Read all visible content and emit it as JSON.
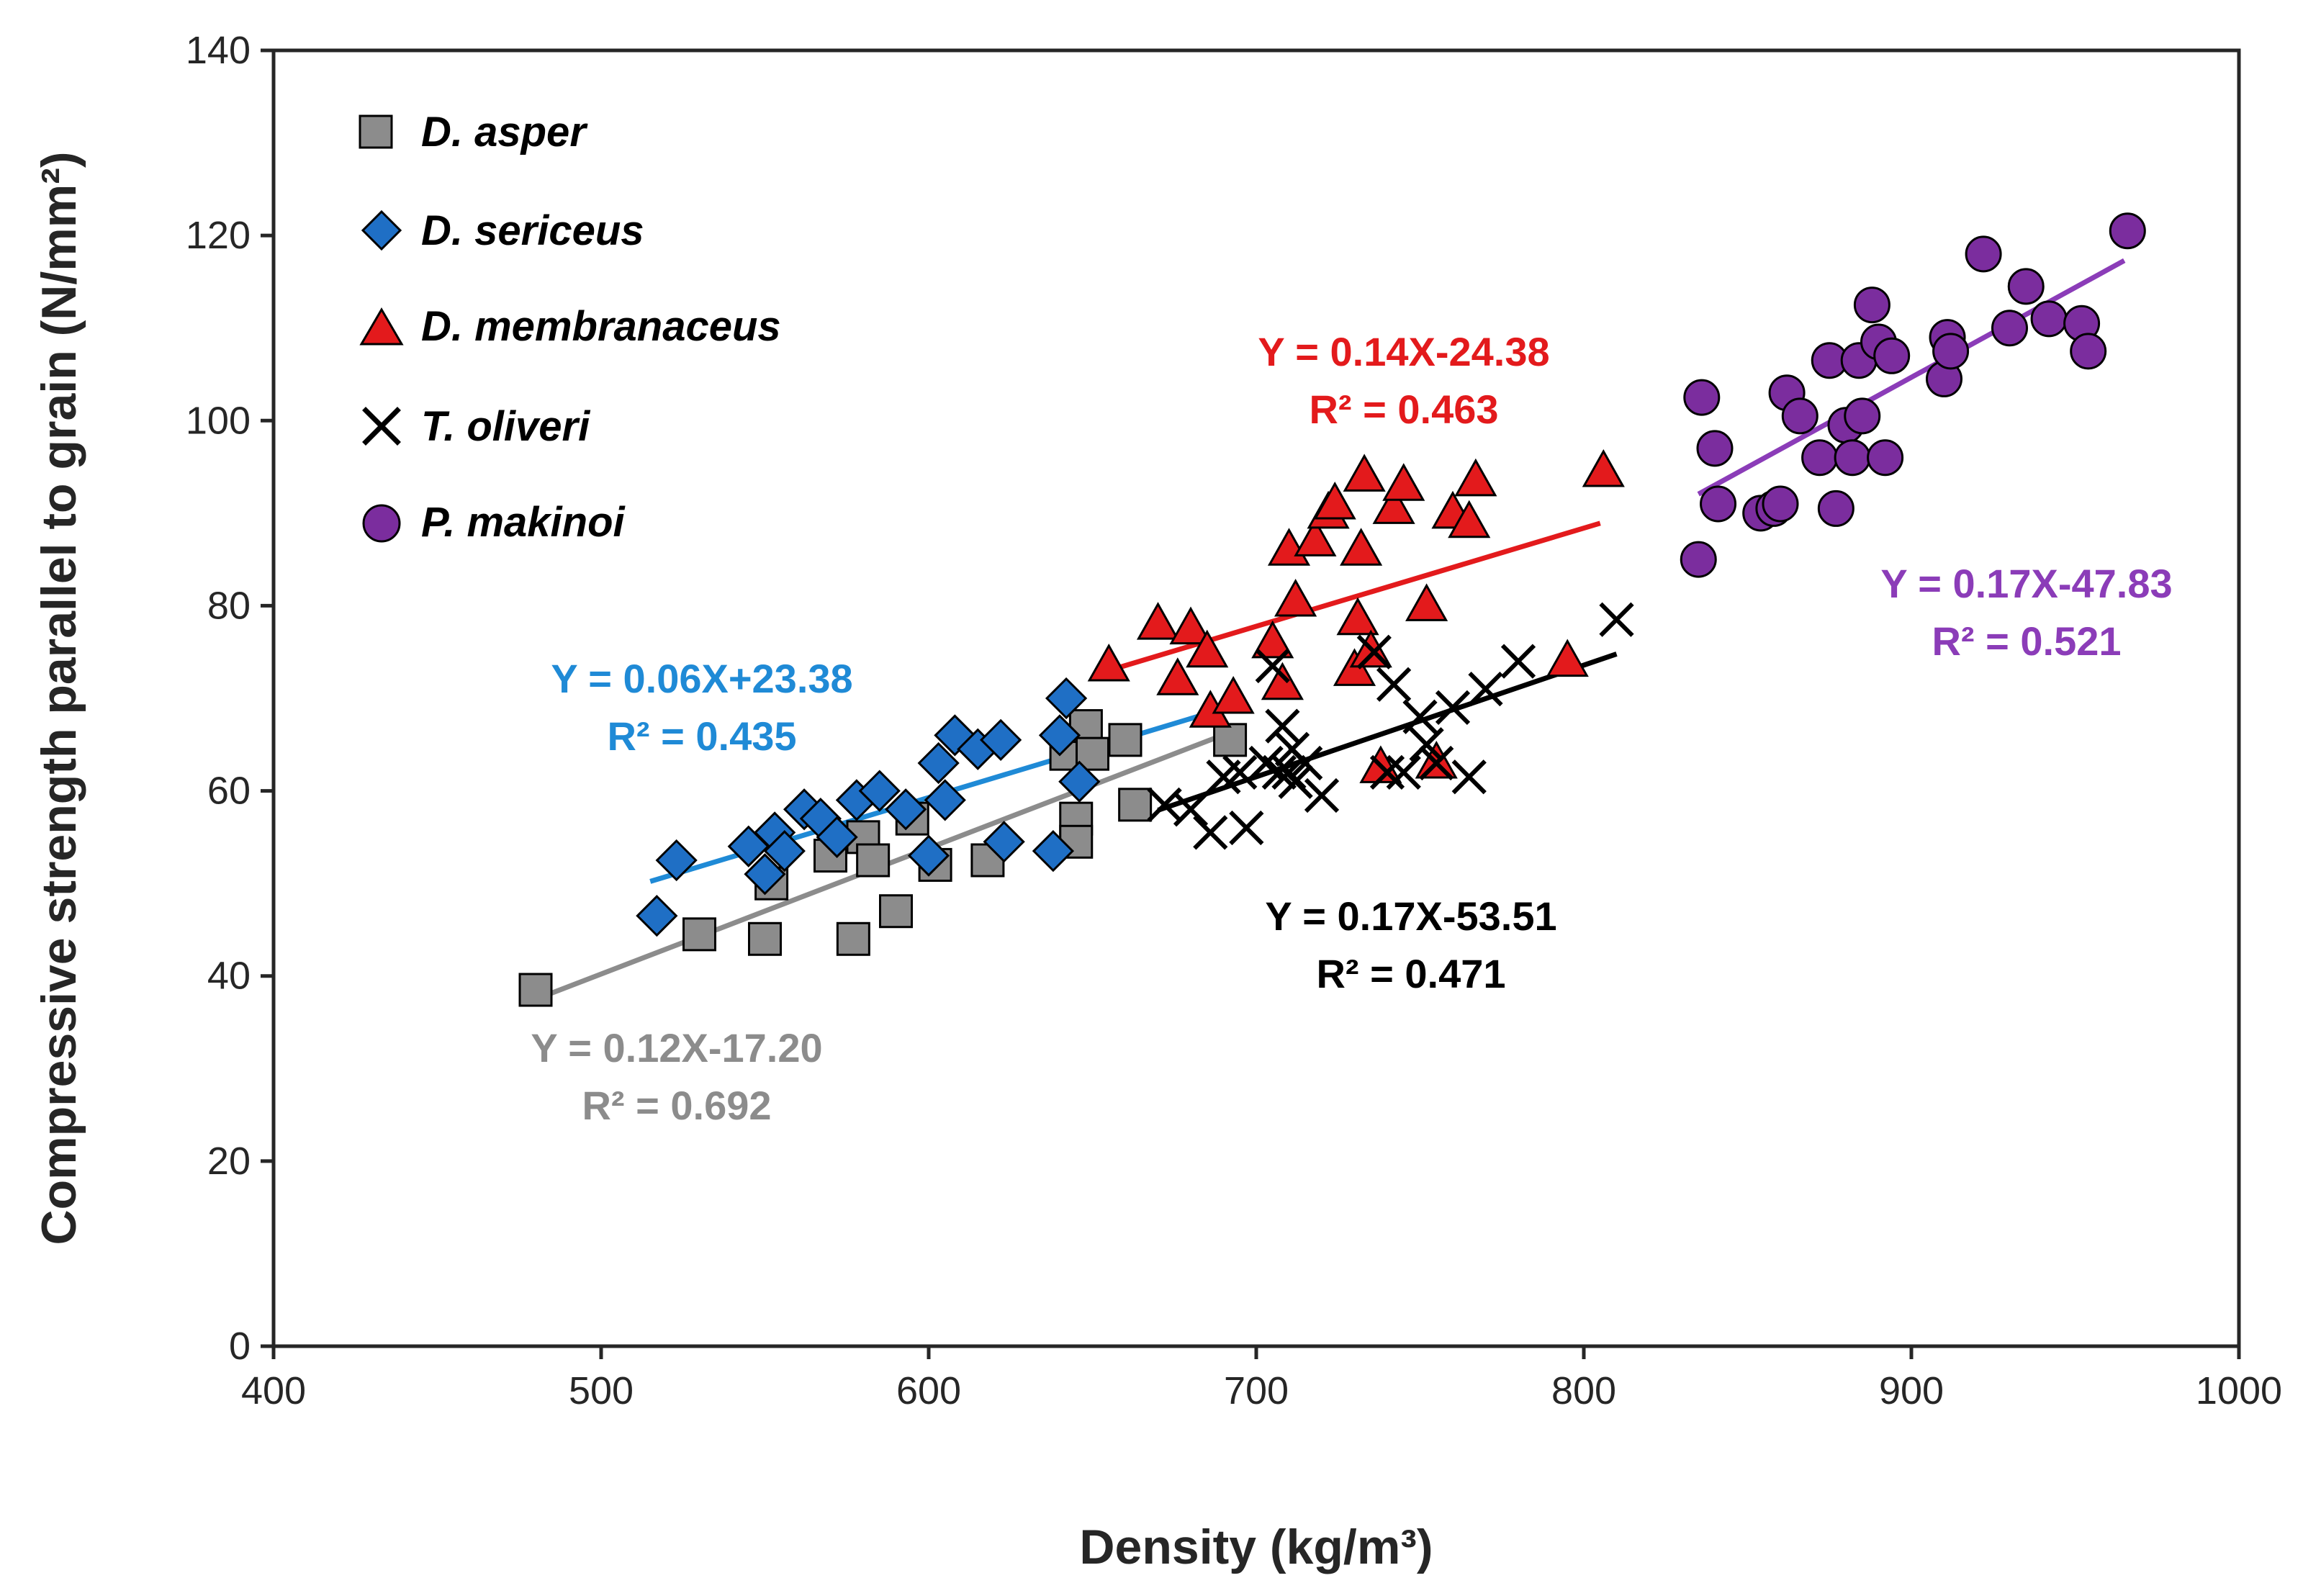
{
  "chart_data": {
    "type": "scatter",
    "title": "",
    "xlabel": "Density (kg/m³)",
    "ylabel": "Compressive strength parallel to grain (N/mm²)",
    "xlim": [
      400,
      1000
    ],
    "ylim": [
      0,
      140
    ],
    "xticks": [
      "400",
      "500",
      "600",
      "700",
      "800",
      "900",
      "1000"
    ],
    "yticks": [
      "0",
      "20",
      "40",
      "60",
      "80",
      "100",
      "120",
      "140"
    ],
    "grid": false,
    "legend_position": "top-left",
    "series": [
      {
        "name": "D. asper",
        "marker": "square",
        "color": "#8c8c8c",
        "line_color": "#8c8c8c",
        "x": [
          480,
          530,
          550,
          552,
          570,
          577,
          580,
          583,
          590,
          595,
          602,
          618,
          642,
          645,
          645,
          648,
          650,
          660,
          663,
          692
        ],
        "y": [
          38.5,
          44.5,
          44,
          50,
          53,
          44,
          55,
          52.5,
          47,
          57,
          52,
          52.5,
          64,
          57,
          54.5,
          67,
          64,
          65.5,
          58.5,
          65.5
        ],
        "trend": {
          "x0": 480,
          "x1": 690
        },
        "equation": "Y = 0.12X-17.20",
        "r2": "R² = 0.692"
      },
      {
        "name": "D. sericeus",
        "marker": "diamond",
        "color": "#1f6fc5",
        "line_color": "#1f8ad6",
        "x": [
          517,
          523,
          545,
          550,
          553,
          556,
          562,
          567,
          572,
          578,
          585,
          593,
          600,
          603,
          605,
          608,
          615,
          622,
          623,
          638,
          640,
          642,
          646
        ],
        "y": [
          46.5,
          52.5,
          54,
          51,
          55.5,
          53.5,
          58,
          57,
          55,
          59,
          60,
          58,
          53,
          63,
          59,
          66,
          64.5,
          65.5,
          54.5,
          53.5,
          66,
          70,
          61
        ],
        "trend": {
          "x0": 515,
          "x1": 685
        },
        "equation": "Y = 0.06X+23.38",
        "r2": "R² = 0.435"
      },
      {
        "name": "D. membranaceus",
        "marker": "triangle",
        "color": "#e31a1c",
        "line_color": "#e31a1c",
        "x": [
          655,
          670,
          676,
          680,
          685,
          686,
          693,
          705,
          708,
          710,
          712,
          718,
          722,
          724,
          730,
          731,
          732,
          733,
          735,
          738,
          742,
          745,
          752,
          755,
          760,
          765,
          767,
          795,
          806
        ],
        "y": [
          73.5,
          78,
          72,
          77.5,
          75,
          68.5,
          70,
          76,
          71.5,
          86,
          80.5,
          87,
          90,
          91,
          73,
          78.5,
          86,
          94,
          75,
          62.5,
          90.5,
          93,
          80,
          63,
          90,
          89,
          93.5,
          74,
          94.5
        ],
        "trend": {
          "x0": 655,
          "x1": 805
        },
        "equation": "Y = 0.14X-24.38",
        "r2": "R² = 0.463"
      },
      {
        "name": "T. oliveri",
        "marker": "x",
        "color": "#000000",
        "line_color": "#000000",
        "x": [
          672,
          680,
          686,
          690,
          695,
          697,
          703,
          705,
          707,
          708,
          710,
          711,
          712,
          715,
          720,
          736,
          740,
          742,
          745,
          750,
          752,
          755,
          760,
          765,
          770,
          780,
          810
        ],
        "y": [
          58.5,
          58,
          55.5,
          61.5,
          62,
          56,
          63,
          73.5,
          62,
          67,
          62,
          64.5,
          61,
          63,
          59.5,
          75,
          62,
          71.5,
          62,
          68,
          65,
          63,
          69,
          61.5,
          71,
          74,
          78.5
        ],
        "trend": {
          "x0": 670,
          "x1": 810
        },
        "equation": "Y = 0.17X-53.51",
        "r2": "R² = 0.471"
      },
      {
        "name": "P. makinoi",
        "marker": "circle",
        "color": "#7b2d9e",
        "line_color": "#8b3cb8",
        "x": [
          835,
          836,
          840,
          841,
          854,
          858,
          860,
          862,
          866,
          872,
          875,
          877,
          880,
          882,
          884,
          885,
          888,
          890,
          892,
          894,
          910,
          911,
          912,
          922,
          930,
          935,
          942,
          952,
          954,
          966
        ],
        "y": [
          85,
          102.5,
          97,
          91,
          90,
          90.5,
          91,
          103,
          100.5,
          96,
          106.5,
          90.5,
          99.5,
          96,
          106.5,
          100.5,
          112.5,
          108.5,
          96,
          107,
          104.5,
          109,
          107.5,
          118,
          110,
          114.5,
          111,
          110.5,
          107.5,
          120.5
        ],
        "trend": {
          "x0": 835,
          "x1": 965
        },
        "equation": "Y = 0.17X-47.83",
        "r2": "R² = 0.521"
      }
    ],
    "annotations": [
      {
        "series": 0,
        "color": "#8c8c8c"
      },
      {
        "series": 1,
        "color": "#1f8ad6"
      },
      {
        "series": 2,
        "color": "#e31a1c"
      },
      {
        "series": 3,
        "color": "#000000"
      },
      {
        "series": 4,
        "color": "#8b3cb8"
      }
    ]
  }
}
